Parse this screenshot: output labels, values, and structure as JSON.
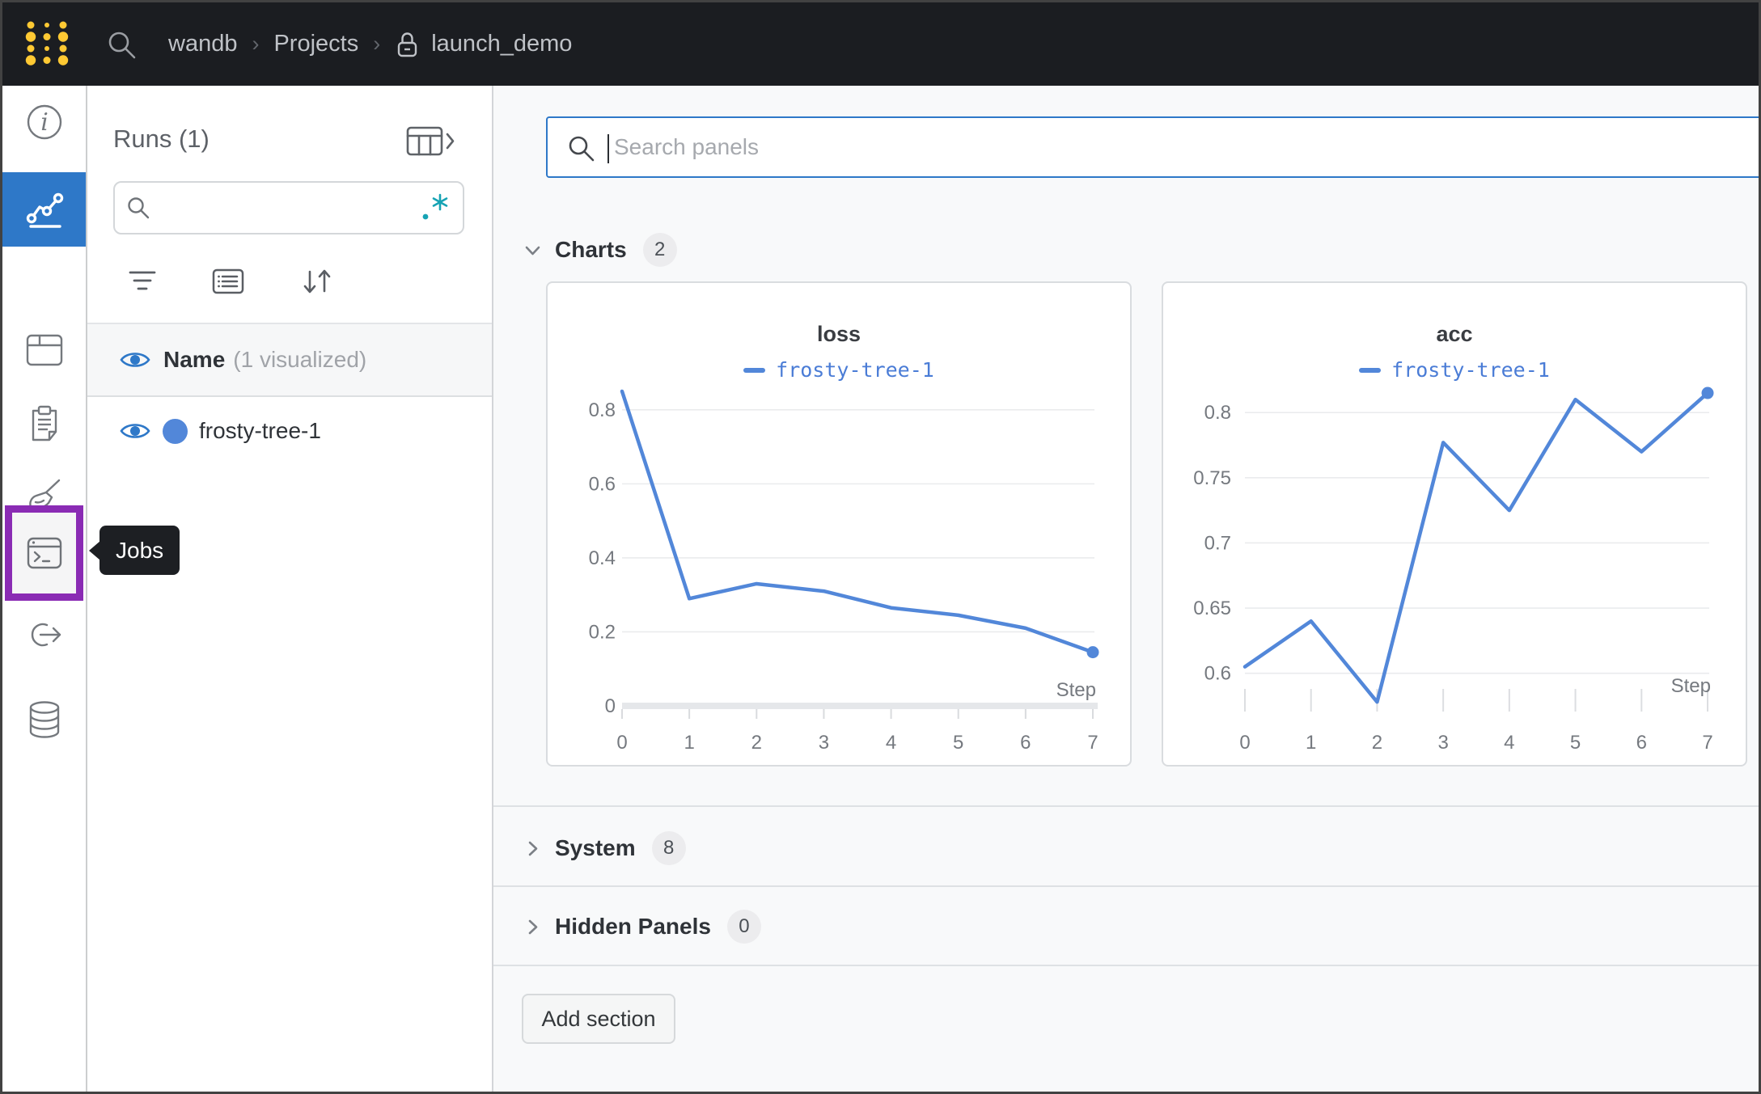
{
  "topbar": {
    "breadcrumb": {
      "item1": "wandb",
      "item2": "Projects",
      "item3": "launch_demo",
      "separator": "›"
    }
  },
  "sidebar": {
    "tooltip": "Jobs"
  },
  "runs_panel": {
    "title": "Runs (1)",
    "search_value": "",
    "header_name": "Name",
    "header_visualized": "(1 visualized)",
    "runs": [
      {
        "name": "frosty-tree-1"
      }
    ]
  },
  "main": {
    "search_placeholder": "Search panels",
    "sections": {
      "charts": {
        "label": "Charts",
        "count": "2"
      },
      "system": {
        "label": "System",
        "count": "8"
      },
      "hidden": {
        "label": "Hidden Panels",
        "count": "0"
      }
    },
    "add_section_label": "Add section"
  },
  "colors": {
    "accent_blue": "#2e78c8",
    "line_blue": "#5287d9",
    "legend_blue": "#4a7cd6",
    "highlight_purple": "#8a2bb4",
    "logo_gold": "#ffc933",
    "regex_teal": "#16a3b4"
  },
  "chart_data": [
    {
      "type": "line",
      "title": "loss",
      "x": [
        0,
        1,
        2,
        3,
        4,
        5,
        6,
        7
      ],
      "series": [
        {
          "name": "frosty-tree-1",
          "color": "#5287d9",
          "values": [
            0.85,
            0.29,
            0.33,
            0.31,
            0.265,
            0.245,
            0.21,
            0.145
          ]
        }
      ],
      "xlabel": "Step",
      "yticks": [
        0,
        0.2,
        0.4,
        0.6,
        0.8
      ],
      "ylim": [
        0,
        0.863
      ],
      "grid": true,
      "legend_position": "top",
      "show_zero_axis": true
    },
    {
      "type": "line",
      "title": "acc",
      "x": [
        0,
        1,
        2,
        3,
        4,
        5,
        6,
        7
      ],
      "series": [
        {
          "name": "frosty-tree-1",
          "color": "#5287d9",
          "values": [
            0.605,
            0.64,
            0.578,
            0.777,
            0.725,
            0.81,
            0.77,
            0.815
          ]
        }
      ],
      "xlabel": "Step",
      "yticks": [
        0.6,
        0.65,
        0.7,
        0.75,
        0.8
      ],
      "ylim": [
        0.575,
        0.82
      ],
      "grid": true,
      "legend_position": "top",
      "show_zero_axis": false
    }
  ]
}
